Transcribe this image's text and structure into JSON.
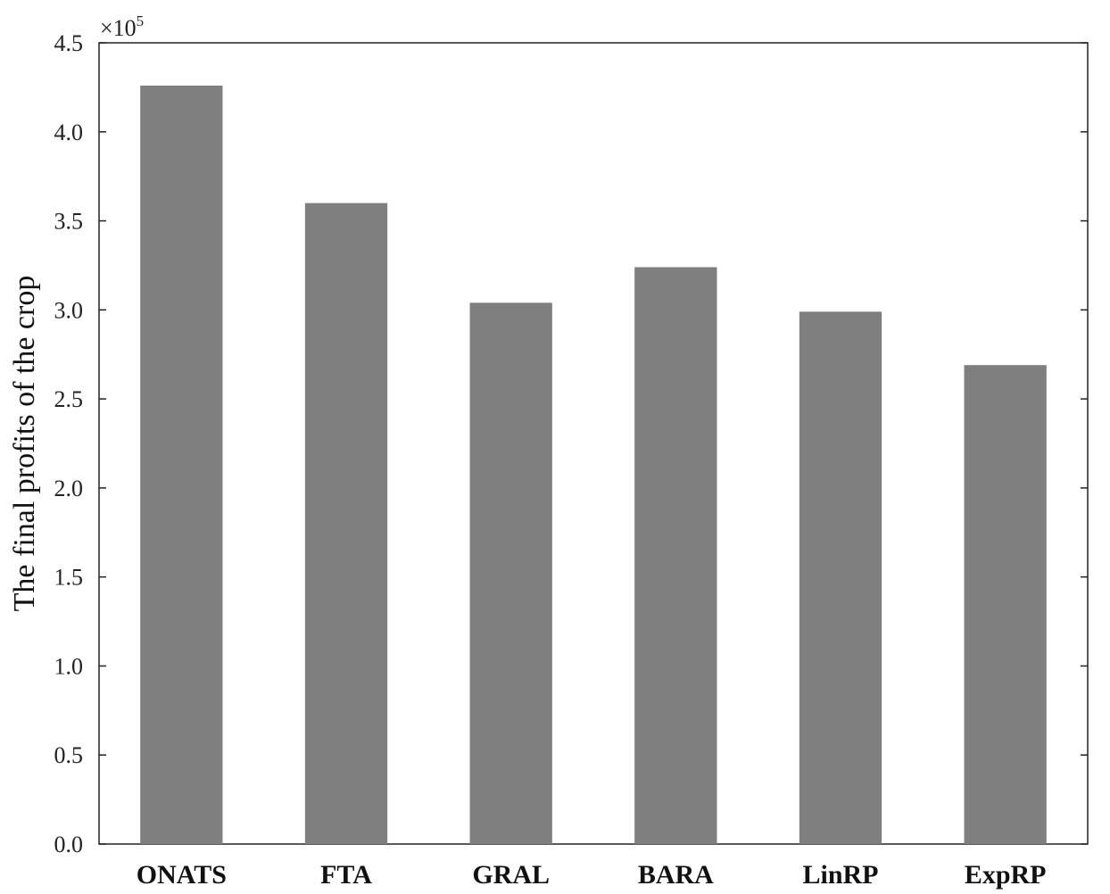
{
  "chart_data": {
    "type": "bar",
    "categories": [
      "ONATS",
      "FTA",
      "GRAL",
      "BARA",
      "LinRP",
      "ExpRP"
    ],
    "values": [
      4.26,
      3.6,
      3.04,
      3.24,
      2.99,
      2.69
    ],
    "ylabel": "The final profits of the crop",
    "ylim": [
      0,
      4.5
    ],
    "yticks": [
      "0.0",
      "0.5",
      "1.0",
      "1.5",
      "2.0",
      "2.5",
      "3.0",
      "3.5",
      "4.0",
      "4.5"
    ],
    "multiplier_base": "×10",
    "multiplier_exponent": "5",
    "bar_color": "#7f7f7f",
    "grid": false
  }
}
